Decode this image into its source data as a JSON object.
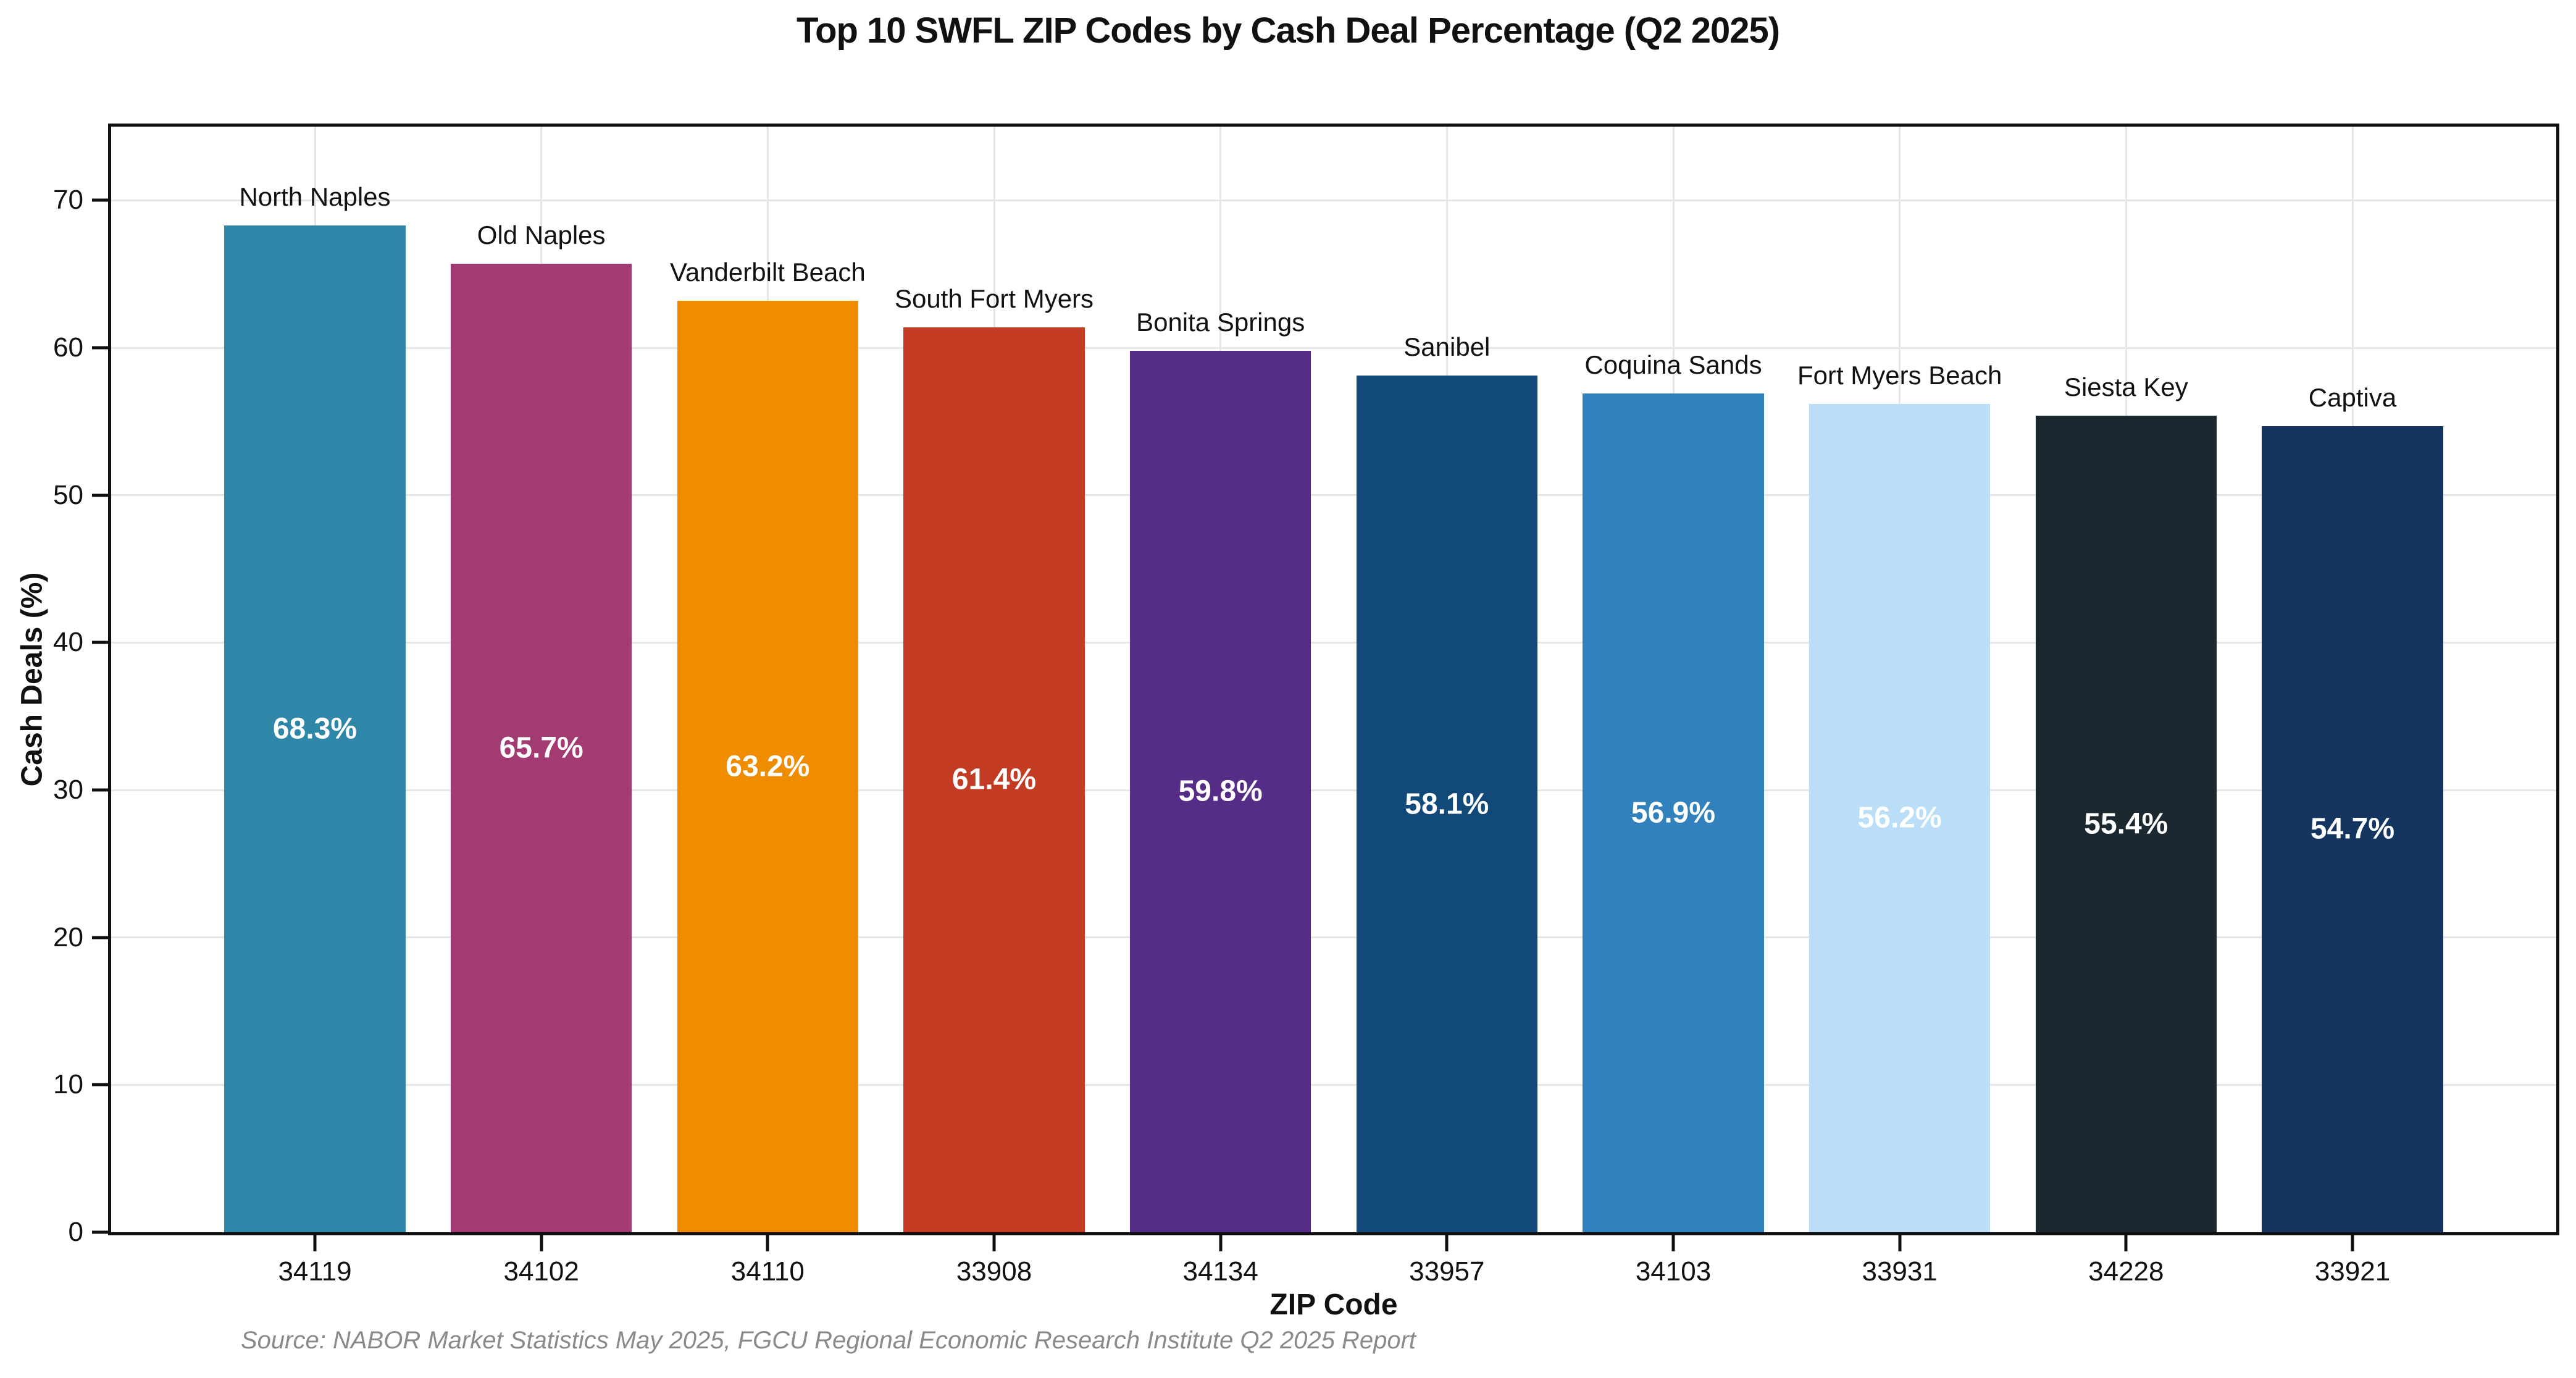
{
  "chart_data": {
    "type": "bar",
    "title": "Top 10 SWFL ZIP Codes by Cash Deal Percentage (Q2 2025)",
    "xlabel": "ZIP Code",
    "ylabel": "Cash Deals (%)",
    "source_note": "Source: NABOR Market Statistics May 2025, FGCU Regional Economic Research Institute Q2 2025 Report",
    "categories": [
      "34119",
      "34102",
      "34110",
      "33908",
      "34134",
      "33957",
      "34103",
      "33931",
      "34228",
      "33921"
    ],
    "area_labels": [
      "North Naples",
      "Old Naples",
      "Vanderbilt Beach",
      "South Fort Myers",
      "Bonita Springs",
      "Sanibel",
      "Coquina Sands",
      "Fort Myers Beach",
      "Siesta Key",
      "Captiva"
    ],
    "values": [
      68.3,
      65.7,
      63.2,
      61.4,
      59.8,
      58.1,
      56.9,
      56.2,
      55.4,
      54.7
    ],
    "value_labels": [
      "68.3%",
      "65.7%",
      "63.2%",
      "61.4%",
      "59.8%",
      "58.1%",
      "56.9%",
      "56.2%",
      "55.4%",
      "54.7%"
    ],
    "bar_colors": [
      "#2E86A8",
      "#A23B72",
      "#F08C00",
      "#C23B22",
      "#552D87",
      "#114A78",
      "#3081BC",
      "#BADEF7",
      "#1C2830",
      "#133560"
    ],
    "ylim": [
      0,
      75
    ],
    "yticks": [
      0,
      10,
      20,
      30,
      40,
      50,
      60,
      70
    ],
    "grid": true,
    "legend": "none",
    "value_label_color": "#ffffff",
    "axis_color": "#0f0f0f",
    "grid_color": "#e6e6e6"
  }
}
